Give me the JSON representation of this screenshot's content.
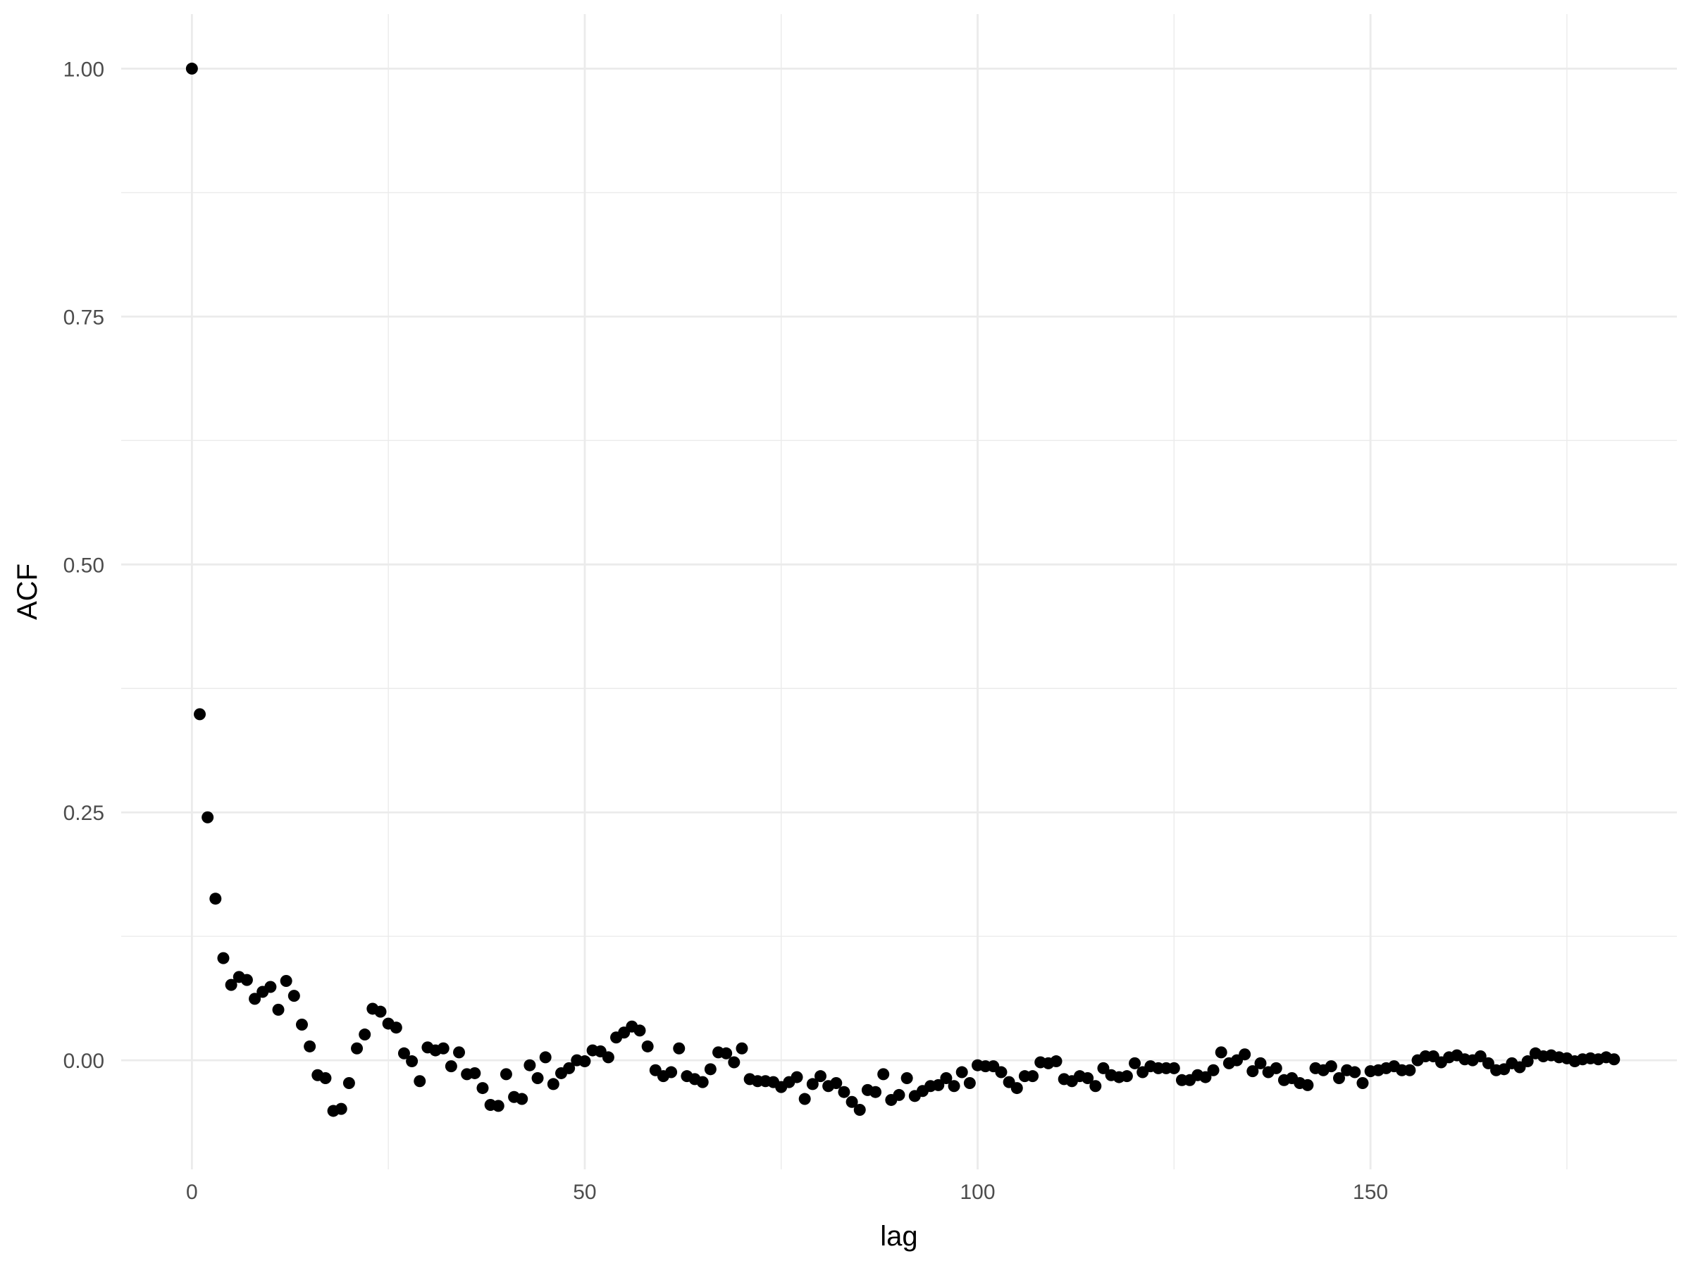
{
  "chart_data": {
    "type": "scatter",
    "title": "",
    "xlabel": "lag",
    "ylabel": "ACF",
    "xlim": [
      -9,
      189
    ],
    "ylim": [
      -0.11,
      1.055
    ],
    "grid": true,
    "x_ticks": [
      0,
      50,
      100,
      150
    ],
    "x_tick_labels": [
      "0",
      "50",
      "100",
      "150"
    ],
    "y_ticks": [
      0,
      0.25,
      0.5,
      0.75,
      1
    ],
    "y_tick_labels": [
      "0.00",
      "0.25",
      "0.50",
      "0.75",
      "1.00"
    ],
    "point_color": "#000000",
    "series": [
      {
        "x": [
          0,
          1,
          2,
          3,
          4,
          5,
          6,
          7,
          8,
          9,
          10,
          11,
          12,
          13,
          14,
          15,
          16,
          17,
          18,
          19,
          20,
          21,
          22,
          23,
          24,
          25,
          26,
          27,
          28,
          29,
          30,
          31,
          32,
          33,
          34,
          35,
          36,
          37,
          38,
          39,
          40,
          41,
          42,
          43,
          44,
          45,
          46,
          47,
          48,
          49,
          50,
          51,
          52,
          53,
          54,
          55,
          56,
          57,
          58,
          59,
          60,
          61,
          62,
          63,
          64,
          65,
          66,
          67,
          68,
          69,
          70,
          71,
          72,
          73,
          74,
          75,
          76,
          77,
          78,
          79,
          80,
          81,
          82,
          83,
          84,
          85,
          86,
          87,
          88,
          89,
          90,
          91,
          92,
          93,
          94,
          95,
          96,
          97,
          98,
          99,
          100,
          101,
          102,
          103,
          104,
          105,
          106,
          107,
          108,
          109,
          110,
          111,
          112,
          113,
          114,
          115,
          116,
          117,
          118,
          119,
          120,
          121,
          122,
          123,
          124,
          125,
          126,
          127,
          128,
          129,
          130,
          131,
          132,
          133,
          134,
          135,
          136,
          137,
          138,
          139,
          140,
          141,
          142,
          143,
          144,
          145,
          146,
          147,
          148,
          149,
          150,
          151,
          152,
          153,
          154,
          155,
          156,
          157,
          158,
          159,
          160,
          161,
          162,
          163,
          164,
          165,
          166,
          167,
          168,
          169,
          170,
          171,
          172,
          173,
          174,
          175,
          176,
          177,
          178,
          179,
          180,
          181
        ],
        "y": [
          1.0,
          0.349,
          0.245,
          0.163,
          0.103,
          0.076,
          0.084,
          0.081,
          0.062,
          0.069,
          0.074,
          0.051,
          0.08,
          0.065,
          0.036,
          0.014,
          -0.015,
          -0.018,
          -0.051,
          -0.049,
          -0.023,
          0.012,
          0.026,
          0.052,
          0.049,
          0.037,
          0.033,
          0.007,
          -0.001,
          -0.021,
          0.013,
          0.01,
          0.012,
          -0.006,
          0.008,
          -0.014,
          -0.013,
          -0.028,
          -0.045,
          -0.046,
          -0.014,
          -0.037,
          -0.039,
          -0.005,
          -0.018,
          0.003,
          -0.024,
          -0.013,
          -0.008,
          0.0,
          -0.001,
          0.01,
          0.009,
          0.003,
          0.023,
          0.028,
          0.034,
          0.03,
          0.014,
          -0.01,
          -0.016,
          -0.012,
          0.012,
          -0.016,
          -0.019,
          -0.022,
          -0.009,
          0.008,
          0.007,
          -0.002,
          0.012,
          -0.019,
          -0.021,
          -0.021,
          -0.022,
          -0.027,
          -0.022,
          -0.017,
          -0.039,
          -0.024,
          -0.016,
          -0.026,
          -0.023,
          -0.032,
          -0.042,
          -0.05,
          -0.03,
          -0.032,
          -0.014,
          -0.04,
          -0.035,
          -0.018,
          -0.036,
          -0.031,
          -0.026,
          -0.025,
          -0.018,
          -0.026,
          -0.012,
          -0.023,
          -0.005,
          -0.006,
          -0.006,
          -0.012,
          -0.022,
          -0.028,
          -0.016,
          -0.016,
          -0.002,
          -0.003,
          -0.001,
          -0.019,
          -0.021,
          -0.016,
          -0.018,
          -0.026,
          -0.008,
          -0.015,
          -0.017,
          -0.016,
          -0.003,
          -0.012,
          -0.006,
          -0.008,
          -0.008,
          -0.008,
          -0.02,
          -0.02,
          -0.015,
          -0.017,
          -0.01,
          0.008,
          -0.003,
          0.0,
          0.006,
          -0.011,
          -0.003,
          -0.012,
          -0.008,
          -0.02,
          -0.018,
          -0.023,
          -0.025,
          -0.008,
          -0.01,
          -0.006,
          -0.018,
          -0.01,
          -0.012,
          -0.023,
          -0.011,
          -0.01,
          -0.008,
          -0.006,
          -0.01,
          -0.01,
          0.0,
          0.004,
          0.004,
          -0.002,
          0.003,
          0.005,
          0.001,
          0.0,
          0.004,
          -0.003,
          -0.01,
          -0.009,
          -0.003,
          -0.007,
          -0.001,
          0.007,
          0.004,
          0.005,
          0.003,
          0.002,
          -0.001,
          0.001,
          0.002,
          0.001,
          0.003,
          0.001
        ]
      }
    ]
  }
}
